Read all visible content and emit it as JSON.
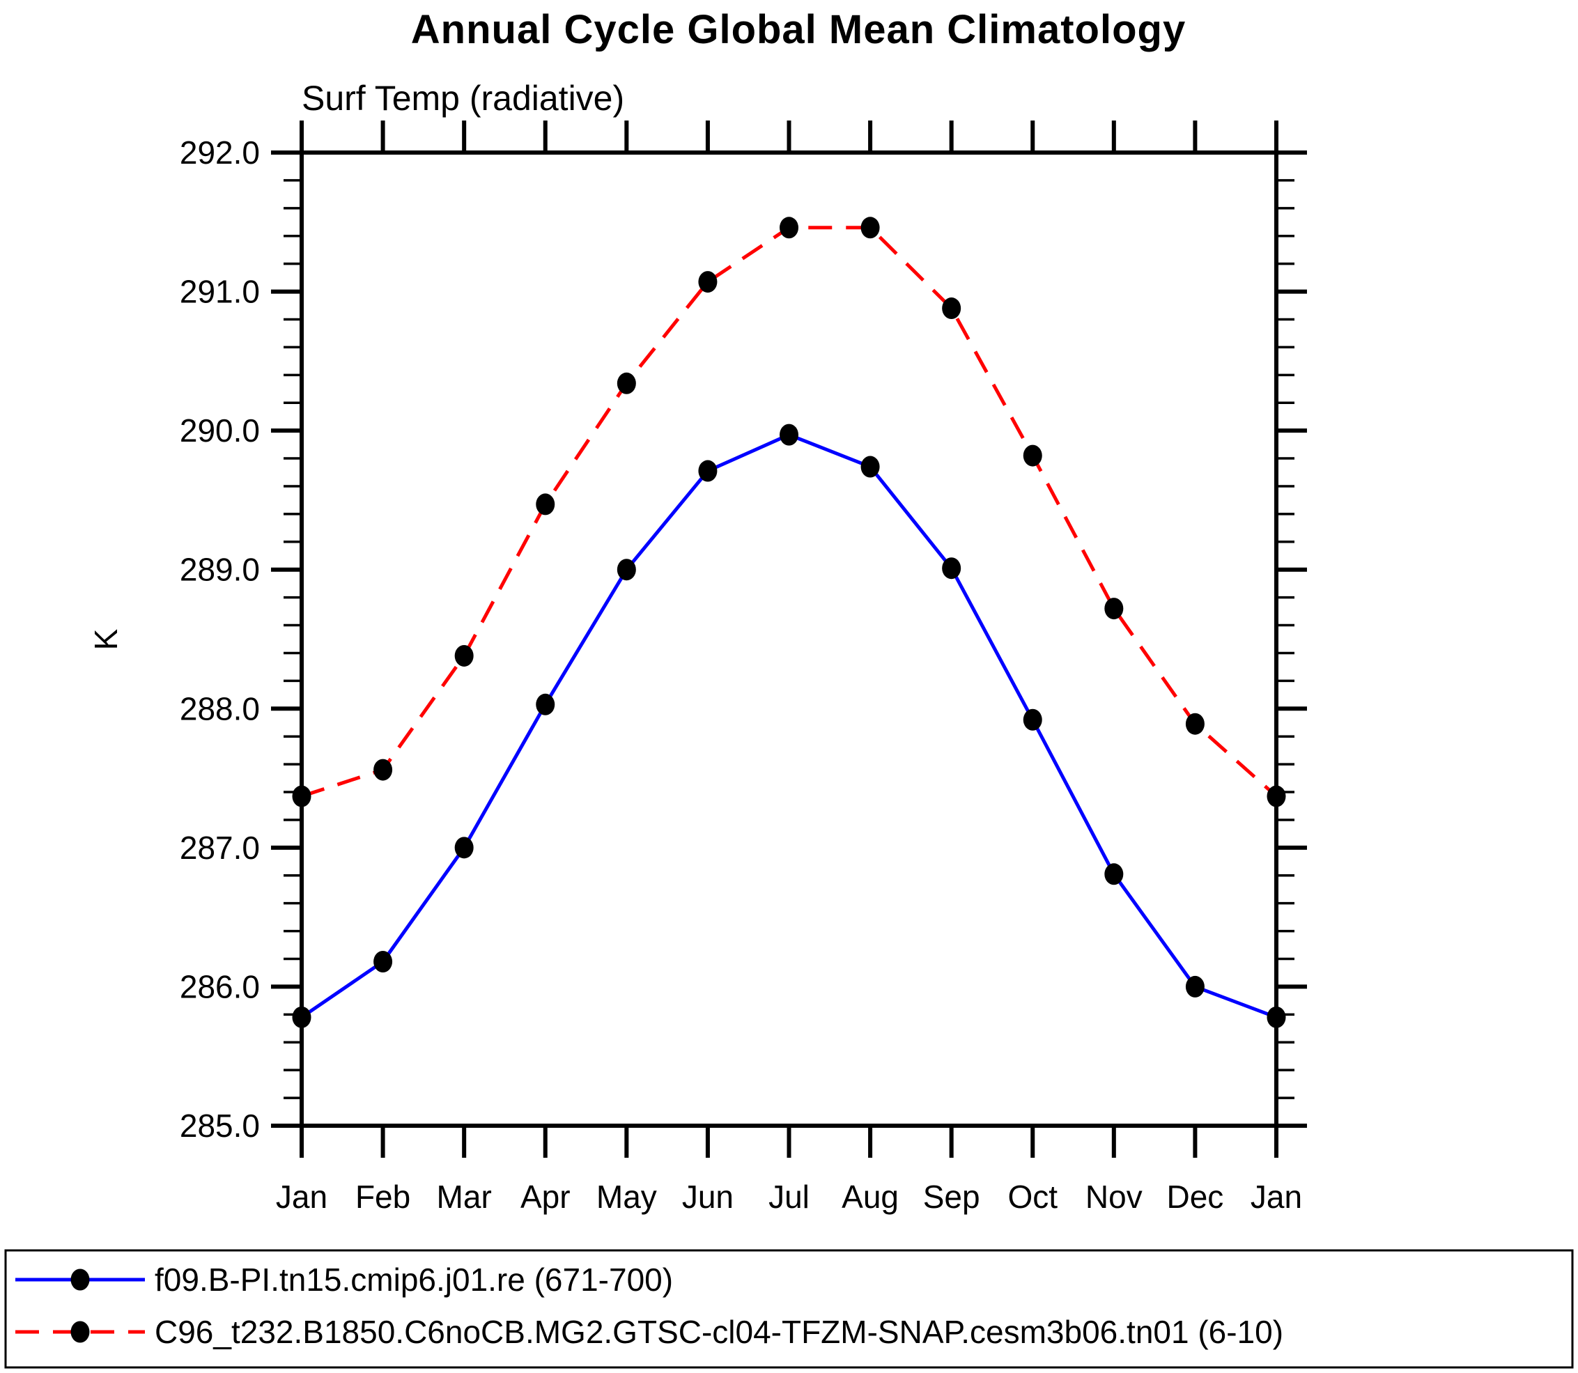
{
  "page": {
    "title": "Annual Cycle Global Mean Climatology",
    "subtitle": "Surf Temp (radiative)",
    "y_axis_label": "K"
  },
  "colors": {
    "background": "#ffffff",
    "frame": "#000000",
    "marker": "#000000",
    "series1": "#0000ff",
    "series2": "#ff0000"
  },
  "y_axis": {
    "min": 285.0,
    "max": 292.0,
    "major_step": 1.0,
    "minor_step": 0.2,
    "major_tick_labels": [
      "285.0",
      "286.0",
      "287.0",
      "288.0",
      "289.0",
      "290.0",
      "291.0",
      "292.0"
    ]
  },
  "x_axis": {
    "tick_labels": [
      "Jan",
      "Feb",
      "Mar",
      "Apr",
      "May",
      "Jun",
      "Jul",
      "Aug",
      "Sep",
      "Oct",
      "Nov",
      "Dec",
      "Jan"
    ]
  },
  "legend": {
    "position": "bottom",
    "entries": [
      {
        "label": "f09.B-PI.tn15.cmip6.j01.re (671-700)",
        "color": "#0000ff",
        "line_style": "solid",
        "marker": "filled-circle"
      },
      {
        "label": "C96_t232.B1850.C6noCB.MG2.GTSC-cl04-TFZM-SNAP.cesm3b06.tn01 (6-10)",
        "color": "#ff0000",
        "line_style": "dashed",
        "marker": "filled-circle"
      }
    ]
  },
  "chart_data": {
    "type": "line",
    "title": "Annual Cycle Global Mean Climatology",
    "subtitle": "Surf Temp (radiative)",
    "xlabel": "",
    "ylabel": "K",
    "ylim": [
      285.0,
      292.0
    ],
    "y_major_step": 1.0,
    "y_minor_step": 0.2,
    "grid": false,
    "legend_position": "bottom",
    "categories": [
      "Jan",
      "Feb",
      "Mar",
      "Apr",
      "May",
      "Jun",
      "Jul",
      "Aug",
      "Sep",
      "Oct",
      "Nov",
      "Dec",
      "Jan"
    ],
    "series": [
      {
        "name": "f09.B-PI.tn15.cmip6.j01.re (671-700)",
        "color": "#0000ff",
        "line_style": "solid",
        "marker": "filled-circle",
        "values": [
          285.78,
          286.18,
          287.0,
          288.03,
          289.0,
          289.71,
          289.97,
          289.74,
          289.01,
          287.92,
          286.81,
          286.0,
          285.78
        ]
      },
      {
        "name": "C96_t232.B1850.C6noCB.MG2.GTSC-cl04-TFZM-SNAP.cesm3b06.tn01 (6-10)",
        "color": "#ff0000",
        "line_style": "dashed",
        "marker": "filled-circle",
        "values": [
          287.37,
          287.56,
          288.38,
          289.47,
          290.34,
          291.07,
          291.46,
          291.46,
          290.88,
          289.82,
          288.72,
          287.89,
          287.37
        ]
      }
    ]
  }
}
